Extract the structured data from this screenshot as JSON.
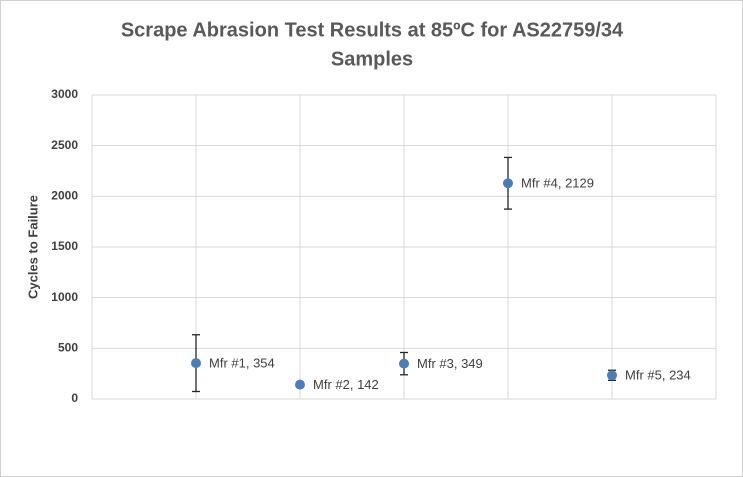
{
  "chart_data": {
    "type": "scatter",
    "title": [
      "Scrape Abrasion Test Results at 85ºC for  AS22759/34",
      "Samples"
    ],
    "y_label": "Cycles to Failure",
    "xlim": [
      0,
      6
    ],
    "xticks": [
      0,
      1,
      2,
      3,
      4,
      5,
      6
    ],
    "ylim": [
      0,
      3000
    ],
    "yticks": [
      0,
      500,
      1000,
      1500,
      2000,
      2500,
      3000
    ],
    "grid": true,
    "series": [
      {
        "color": "#4a7ebb",
        "x": [
          1,
          2,
          3,
          4,
          5
        ],
        "values": [
          354,
          142,
          349,
          2129,
          234
        ],
        "errors": [
          280,
          0,
          110,
          255,
          50
        ],
        "value_labels": [
          "Mfr #1, 354",
          "Mfr #2, 142",
          "Mfr #3, 349",
          "Mfr #4, 2129",
          "Mfr #5, 234"
        ]
      }
    ]
  }
}
